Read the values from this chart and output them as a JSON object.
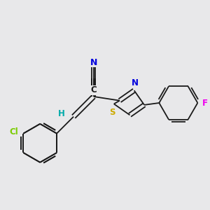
{
  "background_color": "#e8e8ea",
  "bond_color": "#1a1a1a",
  "fig_width": 3.0,
  "fig_height": 3.0,
  "dpi": 100,
  "colors": {
    "N": "#0000dd",
    "S": "#ccaa00",
    "Cl": "#7acc00",
    "F": "#ee00ee",
    "H": "#00aaaa",
    "C": "#1a1a1a"
  }
}
